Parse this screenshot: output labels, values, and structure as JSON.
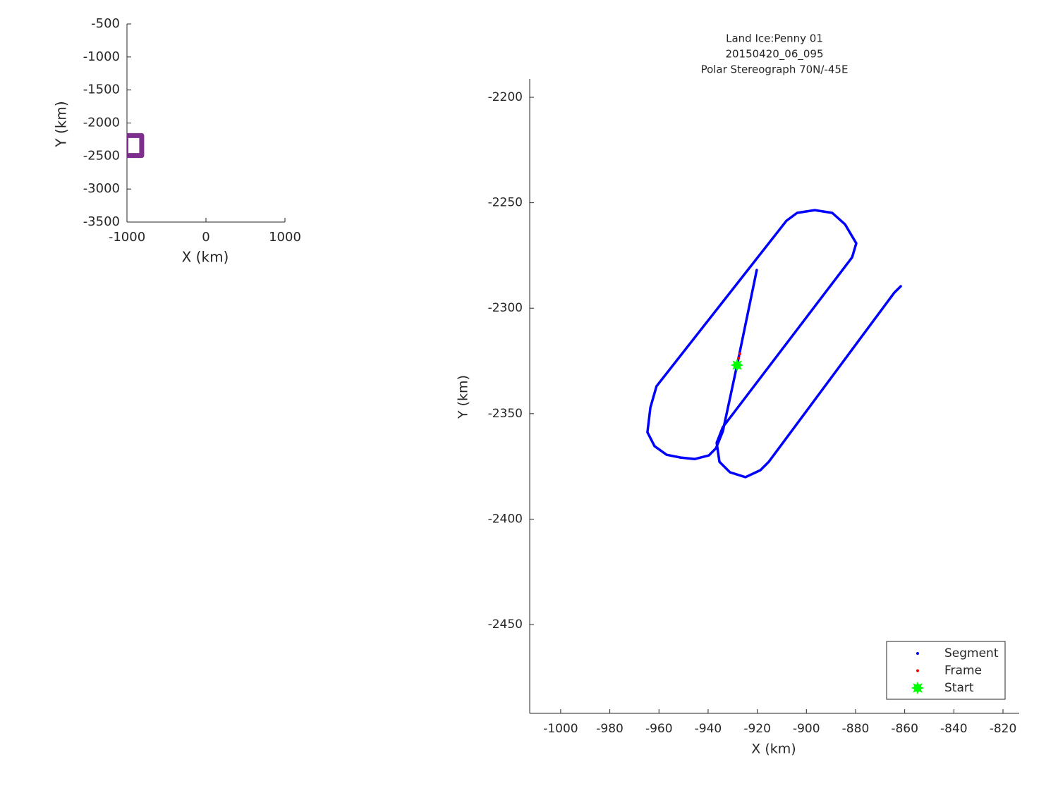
{
  "chart_data": [
    {
      "type": "line",
      "color": "#7e2f8e",
      "x": [
        -1013,
        -813,
        -813,
        -1013,
        -1013
      ],
      "values": [
        -2191,
        -2191,
        -2492,
        -2492,
        -2191
      ],
      "xlim": [
        -1000,
        1000
      ],
      "xticks": [
        -1000,
        0,
        1000
      ],
      "ylim": [
        -3500,
        -500
      ],
      "yticks": [
        -500,
        -1000,
        -1500,
        -2000,
        -2500,
        -3000,
        -3500
      ],
      "xlabel": "X (km)",
      "ylabel": "Y (km)"
    },
    {
      "type": "line",
      "title": [
        "Land Ice:Penny 01",
        "20150420_06_095",
        "Polar Stereograph 70N/-45E"
      ],
      "xlabel": "X (km)",
      "ylabel": "Y (km)",
      "xlim": [
        -1012.6,
        -813.4
      ],
      "xticks": [
        -1000,
        -980,
        -960,
        -940,
        -920,
        -900,
        -880,
        -860,
        -840,
        -820
      ],
      "ylim": [
        -2492.1,
        -2191.3
      ],
      "yticks": [
        -2200,
        -2250,
        -2300,
        -2350,
        -2400,
        -2450
      ],
      "legend": "lower right",
      "series": [
        {
          "name": "Segment",
          "color": "#0000ff",
          "style": "line",
          "x": [
            -920.2,
            -928.2,
            -934.0,
            -936.8,
            -939.7,
            -945.4,
            -951.2,
            -956.9,
            -961.8,
            -964.7,
            -963.5,
            -961.0,
            -908.1,
            -903.8,
            -896.6,
            -889.5,
            -884.3,
            -879.7,
            -881.4,
            -934.0,
            -936.5,
            -935.4,
            -931.1,
            -924.8,
            -918.7,
            -915.3,
            -864.2,
            -861.6
          ],
          "values": [
            -2281.9,
            -2327,
            -2358.4,
            -2366.4,
            -2369.8,
            -2371.5,
            -2370.8,
            -2369.5,
            -2365.4,
            -2358.8,
            -2347.1,
            -2337,
            -2258.5,
            -2254.8,
            -2253.5,
            -2254.8,
            -2260.2,
            -2269.2,
            -2275.9,
            -2356.4,
            -2363.8,
            -2372.8,
            -2377.8,
            -2380.1,
            -2376.8,
            -2372.8,
            -2292.6,
            -2289.6
          ]
        },
        {
          "name": "Frame",
          "color": "#ff0000",
          "style": "dot",
          "x": [
            -927.6,
            -927.1
          ],
          "values": [
            -2323.7,
            -2321.7
          ]
        },
        {
          "name": "Start",
          "color": "#00ff00",
          "style": "star",
          "x": [
            -928.2
          ],
          "values": [
            -2327
          ]
        }
      ]
    }
  ]
}
